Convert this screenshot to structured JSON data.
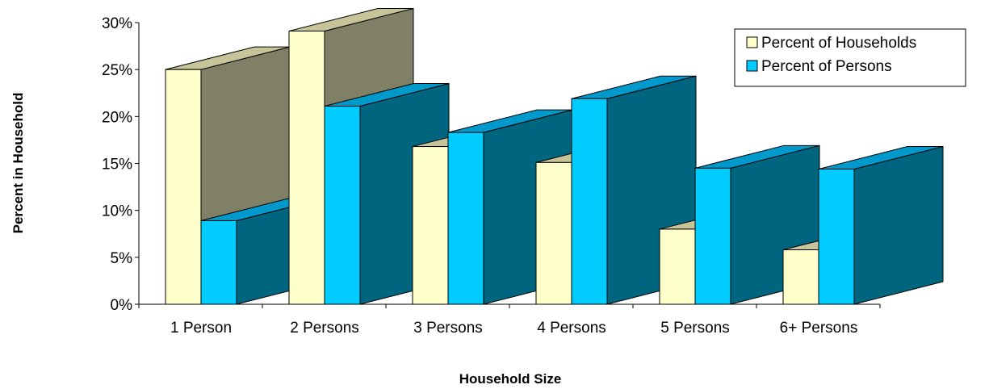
{
  "chart_data": {
    "type": "bar",
    "subtype": "3d-clustered-column",
    "categories": [
      "1 Person",
      "2 Persons",
      "3 Persons",
      "4 Persons",
      "5 Persons",
      "6+ Persons"
    ],
    "series": [
      {
        "name": "Percent of Households",
        "values": [
          25.0,
          29.1,
          16.8,
          15.1,
          8.0,
          5.8
        ],
        "color": "#FFFFCC",
        "side_color": "#808066"
      },
      {
        "name": "Percent of Persons",
        "values": [
          8.9,
          21.1,
          18.3,
          21.9,
          14.5,
          14.4
        ],
        "color": "#00CCFF",
        "side_color": "#006680"
      }
    ],
    "xlabel": "Household Size",
    "ylabel": "Percent in Household",
    "ylim": [
      0,
      30
    ],
    "y_ticks": [
      0,
      5,
      10,
      15,
      20,
      25,
      30
    ],
    "y_tick_labels": [
      "0%",
      "5%",
      "10%",
      "15%",
      "20%",
      "25%",
      "30%"
    ],
    "grid": false,
    "legend_position": "top-right"
  }
}
